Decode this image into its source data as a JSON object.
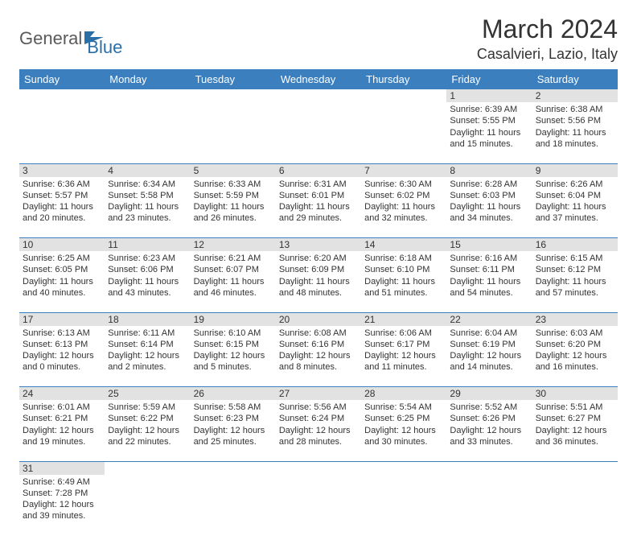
{
  "logo": {
    "part1": "General",
    "part2": "Blue"
  },
  "title": "March 2024",
  "location": "Casalvieri, Lazio, Italy",
  "colors": {
    "header_bg": "#3b7fbf",
    "header_text": "#ffffff",
    "daynum_bg": "#e2e2e2",
    "border": "#3b7fbf",
    "logo_gray": "#5a5a5a",
    "logo_blue": "#2b6fa8",
    "text": "#333333"
  },
  "weekdays": [
    "Sunday",
    "Monday",
    "Tuesday",
    "Wednesday",
    "Thursday",
    "Friday",
    "Saturday"
  ],
  "weeks": [
    [
      null,
      null,
      null,
      null,
      null,
      {
        "n": "1",
        "sr": "Sunrise: 6:39 AM",
        "ss": "Sunset: 5:55 PM",
        "dl": "Daylight: 11 hours and 15 minutes."
      },
      {
        "n": "2",
        "sr": "Sunrise: 6:38 AM",
        "ss": "Sunset: 5:56 PM",
        "dl": "Daylight: 11 hours and 18 minutes."
      }
    ],
    [
      {
        "n": "3",
        "sr": "Sunrise: 6:36 AM",
        "ss": "Sunset: 5:57 PM",
        "dl": "Daylight: 11 hours and 20 minutes."
      },
      {
        "n": "4",
        "sr": "Sunrise: 6:34 AM",
        "ss": "Sunset: 5:58 PM",
        "dl": "Daylight: 11 hours and 23 minutes."
      },
      {
        "n": "5",
        "sr": "Sunrise: 6:33 AM",
        "ss": "Sunset: 5:59 PM",
        "dl": "Daylight: 11 hours and 26 minutes."
      },
      {
        "n": "6",
        "sr": "Sunrise: 6:31 AM",
        "ss": "Sunset: 6:01 PM",
        "dl": "Daylight: 11 hours and 29 minutes."
      },
      {
        "n": "7",
        "sr": "Sunrise: 6:30 AM",
        "ss": "Sunset: 6:02 PM",
        "dl": "Daylight: 11 hours and 32 minutes."
      },
      {
        "n": "8",
        "sr": "Sunrise: 6:28 AM",
        "ss": "Sunset: 6:03 PM",
        "dl": "Daylight: 11 hours and 34 minutes."
      },
      {
        "n": "9",
        "sr": "Sunrise: 6:26 AM",
        "ss": "Sunset: 6:04 PM",
        "dl": "Daylight: 11 hours and 37 minutes."
      }
    ],
    [
      {
        "n": "10",
        "sr": "Sunrise: 6:25 AM",
        "ss": "Sunset: 6:05 PM",
        "dl": "Daylight: 11 hours and 40 minutes."
      },
      {
        "n": "11",
        "sr": "Sunrise: 6:23 AM",
        "ss": "Sunset: 6:06 PM",
        "dl": "Daylight: 11 hours and 43 minutes."
      },
      {
        "n": "12",
        "sr": "Sunrise: 6:21 AM",
        "ss": "Sunset: 6:07 PM",
        "dl": "Daylight: 11 hours and 46 minutes."
      },
      {
        "n": "13",
        "sr": "Sunrise: 6:20 AM",
        "ss": "Sunset: 6:09 PM",
        "dl": "Daylight: 11 hours and 48 minutes."
      },
      {
        "n": "14",
        "sr": "Sunrise: 6:18 AM",
        "ss": "Sunset: 6:10 PM",
        "dl": "Daylight: 11 hours and 51 minutes."
      },
      {
        "n": "15",
        "sr": "Sunrise: 6:16 AM",
        "ss": "Sunset: 6:11 PM",
        "dl": "Daylight: 11 hours and 54 minutes."
      },
      {
        "n": "16",
        "sr": "Sunrise: 6:15 AM",
        "ss": "Sunset: 6:12 PM",
        "dl": "Daylight: 11 hours and 57 minutes."
      }
    ],
    [
      {
        "n": "17",
        "sr": "Sunrise: 6:13 AM",
        "ss": "Sunset: 6:13 PM",
        "dl": "Daylight: 12 hours and 0 minutes."
      },
      {
        "n": "18",
        "sr": "Sunrise: 6:11 AM",
        "ss": "Sunset: 6:14 PM",
        "dl": "Daylight: 12 hours and 2 minutes."
      },
      {
        "n": "19",
        "sr": "Sunrise: 6:10 AM",
        "ss": "Sunset: 6:15 PM",
        "dl": "Daylight: 12 hours and 5 minutes."
      },
      {
        "n": "20",
        "sr": "Sunrise: 6:08 AM",
        "ss": "Sunset: 6:16 PM",
        "dl": "Daylight: 12 hours and 8 minutes."
      },
      {
        "n": "21",
        "sr": "Sunrise: 6:06 AM",
        "ss": "Sunset: 6:17 PM",
        "dl": "Daylight: 12 hours and 11 minutes."
      },
      {
        "n": "22",
        "sr": "Sunrise: 6:04 AM",
        "ss": "Sunset: 6:19 PM",
        "dl": "Daylight: 12 hours and 14 minutes."
      },
      {
        "n": "23",
        "sr": "Sunrise: 6:03 AM",
        "ss": "Sunset: 6:20 PM",
        "dl": "Daylight: 12 hours and 16 minutes."
      }
    ],
    [
      {
        "n": "24",
        "sr": "Sunrise: 6:01 AM",
        "ss": "Sunset: 6:21 PM",
        "dl": "Daylight: 12 hours and 19 minutes."
      },
      {
        "n": "25",
        "sr": "Sunrise: 5:59 AM",
        "ss": "Sunset: 6:22 PM",
        "dl": "Daylight: 12 hours and 22 minutes."
      },
      {
        "n": "26",
        "sr": "Sunrise: 5:58 AM",
        "ss": "Sunset: 6:23 PM",
        "dl": "Daylight: 12 hours and 25 minutes."
      },
      {
        "n": "27",
        "sr": "Sunrise: 5:56 AM",
        "ss": "Sunset: 6:24 PM",
        "dl": "Daylight: 12 hours and 28 minutes."
      },
      {
        "n": "28",
        "sr": "Sunrise: 5:54 AM",
        "ss": "Sunset: 6:25 PM",
        "dl": "Daylight: 12 hours and 30 minutes."
      },
      {
        "n": "29",
        "sr": "Sunrise: 5:52 AM",
        "ss": "Sunset: 6:26 PM",
        "dl": "Daylight: 12 hours and 33 minutes."
      },
      {
        "n": "30",
        "sr": "Sunrise: 5:51 AM",
        "ss": "Sunset: 6:27 PM",
        "dl": "Daylight: 12 hours and 36 minutes."
      }
    ],
    [
      {
        "n": "31",
        "sr": "Sunrise: 6:49 AM",
        "ss": "Sunset: 7:28 PM",
        "dl": "Daylight: 12 hours and 39 minutes."
      },
      null,
      null,
      null,
      null,
      null,
      null
    ]
  ]
}
